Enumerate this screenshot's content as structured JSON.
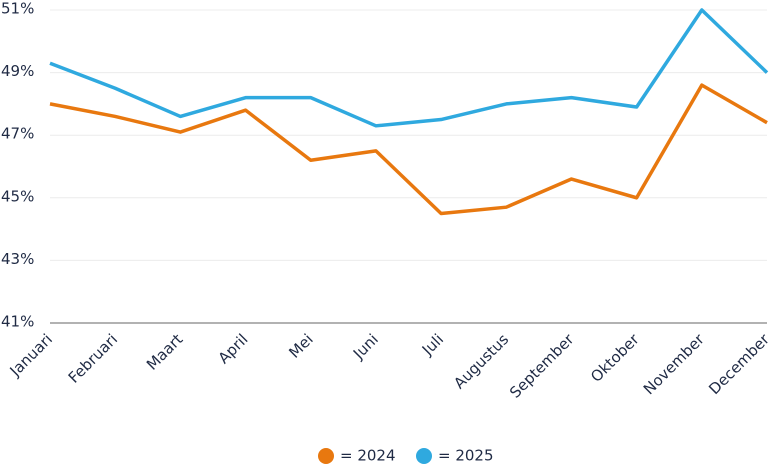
{
  "chart_data": {
    "type": "line",
    "categories": [
      "Januari",
      "Februari",
      "Maart",
      "April",
      "Mei",
      "Juni",
      "Juli",
      "Augustus",
      "September",
      "Oktober",
      "November",
      "December"
    ],
    "series": [
      {
        "name": "= 2024",
        "color": "#e8780f",
        "values": [
          48.0,
          47.6,
          47.1,
          47.8,
          46.2,
          46.5,
          44.5,
          44.7,
          45.6,
          45.0,
          48.6,
          47.4
        ]
      },
      {
        "name": "= 2025",
        "color": "#2fa9df",
        "values": [
          49.3,
          48.5,
          47.6,
          48.2,
          48.2,
          47.3,
          47.5,
          48.0,
          48.2,
          47.9,
          51.0,
          49.0
        ]
      }
    ],
    "ylim": [
      41,
      51
    ],
    "yticks": [
      {
        "value": 41,
        "label": "41%"
      },
      {
        "value": 43,
        "label": "43%"
      },
      {
        "value": 45,
        "label": "45%"
      },
      {
        "value": 47,
        "label": "47%"
      },
      {
        "value": 49,
        "label": "49%"
      },
      {
        "value": 51,
        "label": "51%"
      }
    ],
    "grid": true
  }
}
